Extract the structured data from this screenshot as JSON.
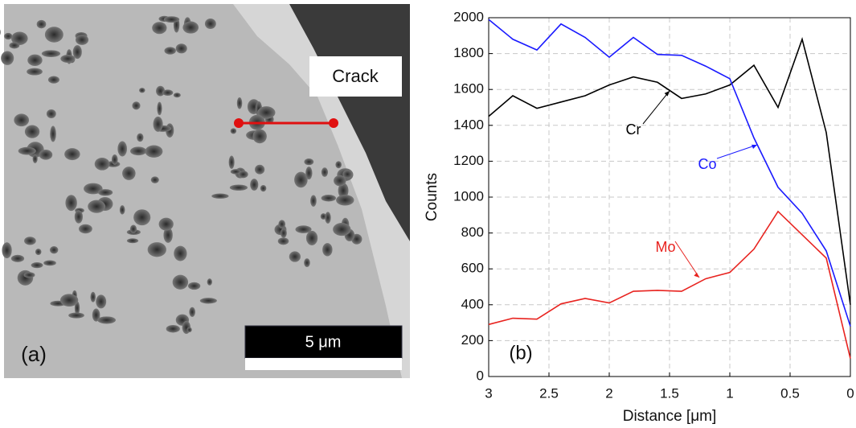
{
  "image_panel": {
    "label": "(a)",
    "crack_label": "Crack",
    "scale_bar": "5 μm"
  },
  "chart_data": {
    "type": "line",
    "panel_label": "(b)",
    "xlabel": "Distance [μm]",
    "ylabel": "Counts",
    "x": [
      3,
      2.8,
      2.6,
      2.4,
      2.2,
      2.0,
      1.8,
      1.6,
      1.4,
      1.2,
      1.0,
      0.8,
      0.6,
      0.4,
      0.2,
      0
    ],
    "series": [
      {
        "name": "Cr",
        "color": "#000000",
        "values": [
          1450,
          1565,
          1495,
          1530,
          1565,
          1625,
          1670,
          1640,
          1550,
          1575,
          1625,
          1735,
          1500,
          1880,
          1360,
          400
        ]
      },
      {
        "name": "Co",
        "color": "#1a1aff",
        "values": [
          1990,
          1880,
          1820,
          1965,
          1890,
          1780,
          1890,
          1795,
          1790,
          1730,
          1660,
          1330,
          1055,
          910,
          700,
          280
        ]
      },
      {
        "name": "Mo",
        "color": "#e8231f",
        "values": [
          290,
          325,
          320,
          405,
          435,
          410,
          475,
          480,
          475,
          545,
          580,
          710,
          920,
          790,
          660,
          100
        ]
      }
    ],
    "xlim": [
      3,
      0
    ],
    "xticks": [
      3,
      2.5,
      2,
      1.5,
      1,
      0.5,
      0
    ],
    "ylim": [
      0,
      2000
    ],
    "yticks": [
      0,
      200,
      400,
      600,
      800,
      1000,
      1200,
      1400,
      1600,
      1800,
      2000
    ],
    "grid": true
  }
}
